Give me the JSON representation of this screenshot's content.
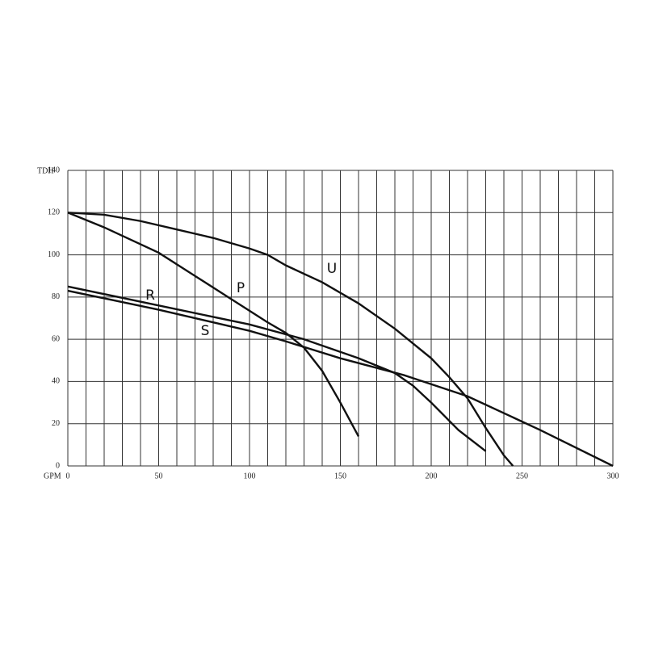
{
  "chart_data": {
    "type": "line",
    "x_label": "GPM",
    "y_label": "TDH",
    "xlim": [
      0,
      300
    ],
    "ylim": [
      0,
      140
    ],
    "xticks": [
      0,
      50,
      100,
      150,
      200,
      250,
      300
    ],
    "yticks": [
      0,
      20,
      40,
      60,
      80,
      100,
      120,
      140
    ],
    "x_minor_grid": [
      10,
      20,
      30,
      40,
      60,
      70,
      80,
      90,
      110,
      120,
      130,
      140,
      160,
      170,
      180,
      190,
      210,
      220,
      230,
      240,
      260,
      270,
      280,
      290
    ],
    "grid": true,
    "series": [
      {
        "name": "U",
        "color": "#111111",
        "x": [
          0,
          20,
          40,
          60,
          80,
          100,
          110,
          120,
          140,
          160,
          180,
          200,
          210,
          220,
          230,
          240,
          245
        ],
        "values": [
          120,
          119,
          116,
          112,
          108,
          103,
          100,
          95,
          87,
          77,
          65,
          51,
          42,
          32,
          18,
          5,
          0
        ]
      },
      {
        "name": "P",
        "color": "#111111",
        "x": [
          0,
          20,
          50,
          70,
          90,
          110,
          120,
          130,
          140,
          150,
          160
        ],
        "values": [
          120,
          113,
          101,
          90,
          79,
          68,
          63,
          56,
          45,
          30,
          14
        ]
      },
      {
        "name": "R",
        "color": "#111111",
        "x": [
          0,
          50,
          100,
          130,
          160,
          180,
          190,
          200,
          215,
          230
        ],
        "values": [
          85,
          76,
          67,
          60,
          51,
          44,
          38,
          30,
          17,
          7
        ]
      },
      {
        "name": "S",
        "color": "#111111",
        "x": [
          0,
          50,
          100,
          120,
          150,
          185,
          220,
          260,
          300
        ],
        "values": [
          83,
          74,
          64,
          59,
          51,
          43,
          33,
          17,
          0
        ]
      }
    ]
  }
}
